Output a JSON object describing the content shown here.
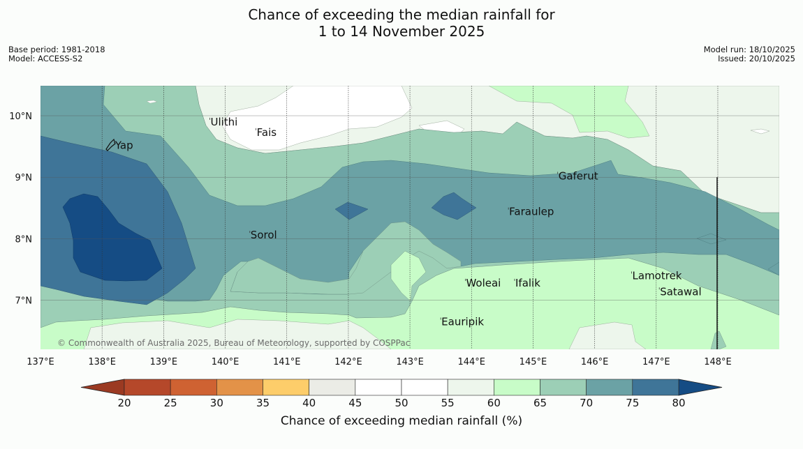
{
  "title": {
    "line1": "Chance of exceeding the median rainfall for",
    "line2": "1 to 14 November 2025"
  },
  "meta_left": {
    "base_period": "Base period: 1981-2018",
    "model": "Model: ACCESS-S2"
  },
  "meta_right": {
    "model_run": "Model run: 18/10/2025",
    "issued": "Issued: 20/10/2025"
  },
  "map": {
    "extent": {
      "lon_min": 137.0,
      "lon_max": 149.0,
      "lat_min": 6.2,
      "lat_max": 10.5
    },
    "lon_ticks": [
      "137°E",
      "138°E",
      "139°E",
      "140°E",
      "141°E",
      "142°E",
      "143°E",
      "144°E",
      "145°E",
      "146°E",
      "147°E",
      "148°E"
    ],
    "lat_ticks": [
      "10°N",
      "9°N",
      "8°N",
      "7°N"
    ],
    "places": [
      {
        "name": "Yap",
        "lon": 138.2,
        "lat": 9.52
      },
      {
        "name": "Ulithi",
        "lon": 139.75,
        "lat": 9.9
      },
      {
        "name": "Fais",
        "lon": 140.5,
        "lat": 9.73
      },
      {
        "name": "Gaferut",
        "lon": 145.4,
        "lat": 9.02
      },
      {
        "name": "Faraulep",
        "lon": 144.6,
        "lat": 8.44
      },
      {
        "name": "Sorol",
        "lon": 140.4,
        "lat": 8.06
      },
      {
        "name": "Woleai",
        "lon": 143.9,
        "lat": 7.28
      },
      {
        "name": "Ifalik",
        "lon": 144.7,
        "lat": 7.28
      },
      {
        "name": "Lamotrek",
        "lon": 146.6,
        "lat": 7.4
      },
      {
        "name": "Satawal",
        "lon": 147.05,
        "lat": 7.14
      },
      {
        "name": "Eauripik",
        "lon": 143.5,
        "lat": 6.65
      }
    ],
    "copyright": "© Commonwealth of Australia 2025, Bureau of Meteorology, supported by COSPPac"
  },
  "colorbar": {
    "ticks": [
      "20",
      "25",
      "30",
      "35",
      "40",
      "45",
      "50",
      "55",
      "60",
      "65",
      "70",
      "75",
      "80"
    ],
    "colors": [
      "#b5482a",
      "#cf6232",
      "#e39248",
      "#fdcd6a",
      "#ebece6",
      "#ffffff",
      "#ffffff",
      "#edf6ec",
      "#c8fcc8",
      "#9ccfb6",
      "#6ba2a5",
      "#3f7598"
    ],
    "under_color": "#9b3a22",
    "over_color": "#154c84",
    "label": "Chance of exceeding median rainfall (%)"
  }
}
